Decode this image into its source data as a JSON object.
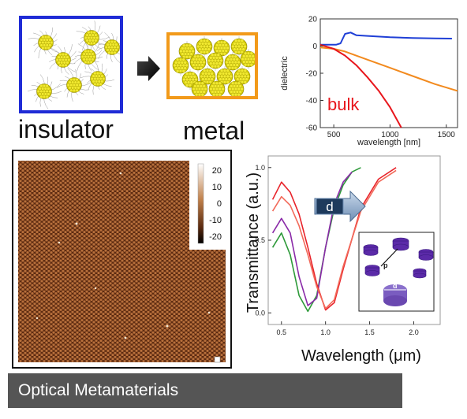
{
  "top_row": {
    "insulator_label": "insulator",
    "metal_label": "metal",
    "arrow_icon": "right-arrow-icon"
  },
  "chart_data": [
    {
      "type": "line",
      "title": "",
      "xlabel": "wavelength [nm]",
      "ylabel": "dielectric",
      "xlim": [
        380,
        1600
      ],
      "ylim": [
        -60,
        20
      ],
      "x_ticks": [
        "500",
        "1000",
        "1500"
      ],
      "x_tick_values": [
        500,
        1000,
        1500
      ],
      "y_ticks": [
        "20",
        "0",
        "-20",
        "-40",
        "-60"
      ],
      "y_tick_values": [
        20,
        0,
        -20,
        -40,
        -60
      ],
      "annotation": "bulk",
      "series": [
        {
          "color": "#1f3fd6",
          "x": [
            380,
            420,
            520,
            560,
            600,
            650,
            700,
            800,
            1000,
            1200,
            1400,
            1550
          ],
          "y": [
            1,
            1,
            1,
            2,
            9,
            10,
            8,
            7.5,
            6.5,
            6,
            5.7,
            5.5
          ]
        },
        {
          "color": "#f28a1e",
          "x": [
            380,
            500,
            600,
            800,
            1000,
            1200,
            1400,
            1600
          ],
          "y": [
            -1,
            -2,
            -4,
            -10,
            -16,
            -22,
            -28,
            -33
          ]
        },
        {
          "color": "#e8161c",
          "x": [
            380,
            500,
            600,
            700,
            800,
            900,
            1000,
            1100
          ],
          "y": [
            1,
            -2,
            -7,
            -14,
            -23,
            -33,
            -45,
            -60
          ]
        }
      ]
    },
    {
      "type": "line",
      "title": "",
      "xlabel": "Wavelength (μm)",
      "ylabel": "Transmittance  (a.u.)",
      "xlim": [
        0.35,
        2.3
      ],
      "ylim": [
        -0.08,
        1.08
      ],
      "x_ticks": [
        "0.5",
        "1.0",
        "1.5",
        "2.0"
      ],
      "x_tick_values": [
        0.5,
        1.0,
        1.5,
        2.0
      ],
      "y_ticks": [
        "0.0",
        "0.5",
        "1.0"
      ],
      "y_tick_values": [
        0.0,
        0.5,
        1.0
      ],
      "annotation": "d",
      "series": [
        {
          "color": "#2e9a3a",
          "x": [
            0.4,
            0.5,
            0.6,
            0.7,
            0.8,
            0.9,
            1.0,
            1.1,
            1.2,
            1.3,
            1.4
          ],
          "y": [
            0.45,
            0.55,
            0.4,
            0.12,
            0.01,
            0.12,
            0.45,
            0.72,
            0.88,
            0.97,
            1.0
          ]
        },
        {
          "color": "#8a2aa8",
          "x": [
            0.4,
            0.5,
            0.6,
            0.7,
            0.8,
            0.9,
            1.0,
            1.1,
            1.2,
            1.3
          ],
          "y": [
            0.55,
            0.65,
            0.55,
            0.25,
            0.05,
            0.1,
            0.45,
            0.75,
            0.9,
            0.97
          ]
        },
        {
          "color": "#e8232a",
          "x": [
            0.4,
            0.5,
            0.6,
            0.7,
            0.8,
            0.9,
            1.0,
            1.1,
            1.2,
            1.4,
            1.6,
            1.8
          ],
          "y": [
            0.78,
            0.9,
            0.83,
            0.68,
            0.45,
            0.2,
            0.02,
            0.07,
            0.3,
            0.72,
            0.92,
            1.0
          ]
        },
        {
          "color": "#f26a5a",
          "x": [
            0.4,
            0.5,
            0.6,
            0.7,
            0.8,
            0.9,
            1.0,
            1.1,
            1.2,
            1.4,
            1.6,
            1.8
          ],
          "y": [
            0.7,
            0.8,
            0.74,
            0.6,
            0.4,
            0.18,
            0.03,
            0.09,
            0.32,
            0.7,
            0.9,
            0.98
          ]
        }
      ],
      "inset": {
        "labels": [
          "p",
          "d"
        ]
      }
    }
  ],
  "afm_image": {
    "colorbar_ticks": [
      "20",
      "10",
      "0",
      "-10",
      "-20"
    ]
  },
  "footer": {
    "title": "Optical Metamaterials"
  }
}
